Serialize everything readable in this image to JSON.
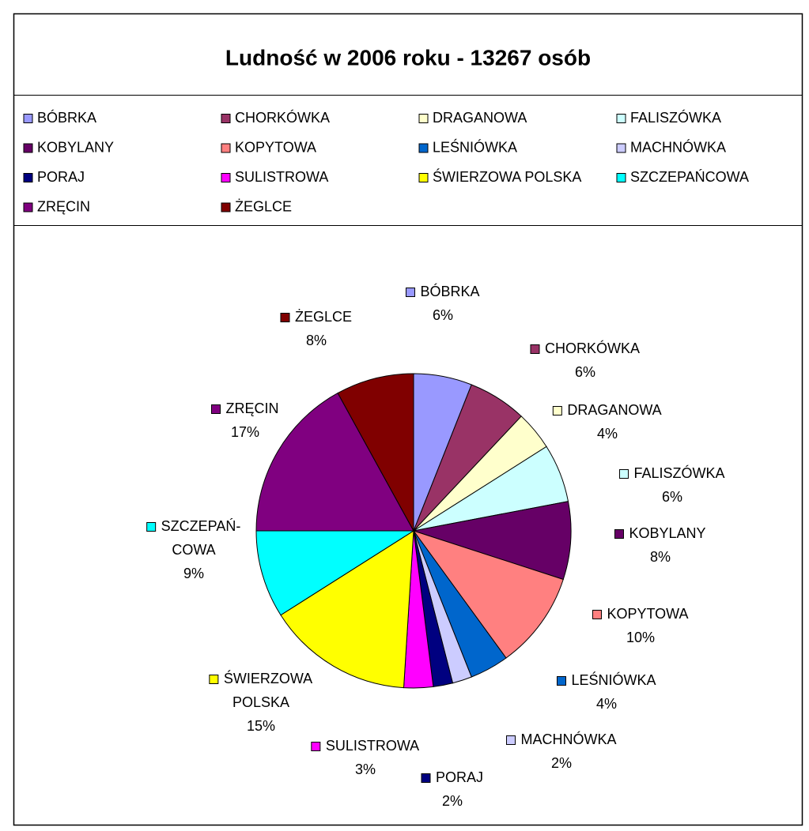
{
  "chart_data": {
    "type": "pie",
    "title": "Ludność w 2006 roku - 13267 osób",
    "categories": [
      "BÓBRKA",
      "CHORKÓWKA",
      "DRAGANOWA",
      "FALISZÓWKA",
      "KOBYLANY",
      "KOPYTOWA",
      "LEŚNIÓWKA",
      "MACHNÓWKA",
      "PORAJ",
      "SULISTROWA",
      "ŚWIERZOWA POLSKA",
      "SZCZEPAŃCOWA",
      "ZRĘCIN",
      "ŻEGLCE"
    ],
    "slice_labels": [
      [
        "BÓBRKA"
      ],
      [
        "CHORKÓWKA"
      ],
      [
        "DRAGANOWA"
      ],
      [
        "FALISZÓWKA"
      ],
      [
        "KOBYLANY"
      ],
      [
        "KOPYTOWA"
      ],
      [
        "LEŚNIÓWKA"
      ],
      [
        "MACHNÓWKA"
      ],
      [
        "PORAJ"
      ],
      [
        "SULISTROWA"
      ],
      [
        "ŚWIERZOWA",
        "POLSKA"
      ],
      [
        "SZCZEPAŃ-",
        "COWA"
      ],
      [
        "ZRĘCIN"
      ],
      [
        "ŻEGLCE"
      ]
    ],
    "values": [
      6,
      6,
      4,
      6,
      8,
      10,
      4,
      2,
      2,
      3,
      15,
      9,
      17,
      8
    ],
    "value_labels": [
      "6%",
      "6%",
      "4%",
      "6%",
      "8%",
      "10%",
      "4%",
      "2%",
      "2%",
      "3%",
      "15%",
      "9%",
      "17%",
      "8%"
    ],
    "colors": [
      "#9999ff",
      "#993366",
      "#ffffcc",
      "#ccffff",
      "#660066",
      "#ff8080",
      "#0066cc",
      "#ccccff",
      "#000080",
      "#ff00ff",
      "#ffff00",
      "#00ffff",
      "#800080",
      "#800000"
    ],
    "legend": "top"
  }
}
